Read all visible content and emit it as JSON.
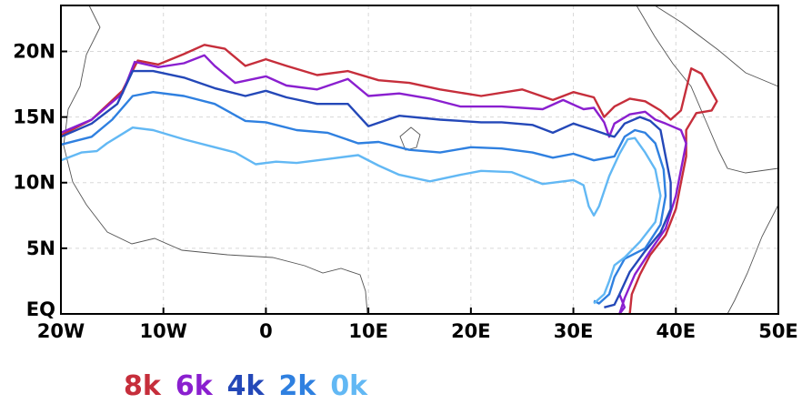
{
  "map": {
    "x_ticks": [
      "20W",
      "10W",
      "0",
      "10E",
      "20E",
      "30E",
      "40E",
      "50E"
    ],
    "y_ticks": [
      "EQ",
      "5N",
      "10N",
      "15N",
      "20N"
    ],
    "lon_range": [
      -20,
      50
    ],
    "lat_range": [
      0,
      23.5
    ],
    "gridlines": true,
    "coastline_color": "#555555"
  },
  "legend": [
    {
      "label": "8k",
      "color": "#c62e3b"
    },
    {
      "label": "6k",
      "color": "#8a1fcf"
    },
    {
      "label": "4k",
      "color": "#2448b8"
    },
    {
      "label": "2k",
      "color": "#2f80e0"
    },
    {
      "label": "0k",
      "color": "#62b8f4"
    }
  ],
  "chart_data": {
    "type": "line",
    "xlim": [
      -20,
      50
    ],
    "ylim": [
      0,
      23.5
    ],
    "series": [
      {
        "name": "8k",
        "color": "#c62e3b",
        "points": [
          [
            -20,
            13.6
          ],
          [
            -17,
            14.8
          ],
          [
            -14,
            17
          ],
          [
            -12.5,
            19.3
          ],
          [
            -10.5,
            19
          ],
          [
            -8,
            19.8
          ],
          [
            -6,
            20.5
          ],
          [
            -4,
            20.2
          ],
          [
            -2,
            18.9
          ],
          [
            0,
            19.4
          ],
          [
            2,
            18.9
          ],
          [
            5,
            18.2
          ],
          [
            8,
            18.5
          ],
          [
            11,
            17.8
          ],
          [
            14,
            17.6
          ],
          [
            17,
            17.1
          ],
          [
            21,
            16.6
          ],
          [
            25,
            17.1
          ],
          [
            28,
            16.3
          ],
          [
            30,
            16.9
          ],
          [
            32,
            16.5
          ],
          [
            33,
            15
          ],
          [
            34,
            15.8
          ],
          [
            35.5,
            16.4
          ],
          [
            37,
            16.2
          ],
          [
            38.5,
            15.5
          ],
          [
            39.5,
            14.8
          ],
          [
            40.5,
            15.5
          ],
          [
            41.5,
            18.7
          ],
          [
            42.5,
            18.3
          ],
          [
            44,
            16.2
          ],
          [
            43.5,
            15.5
          ],
          [
            42,
            15.3
          ],
          [
            41,
            14
          ],
          [
            41,
            12
          ],
          [
            40.5,
            10
          ],
          [
            40,
            8
          ],
          [
            39,
            6
          ],
          [
            37.5,
            4.5
          ],
          [
            36.5,
            3
          ],
          [
            35.7,
            1.5
          ],
          [
            35.5,
            0
          ]
        ]
      },
      {
        "name": "6k",
        "color": "#8a1fcf",
        "points": [
          [
            -20,
            13.8
          ],
          [
            -17,
            14.8
          ],
          [
            -14,
            16.8
          ],
          [
            -12.8,
            19.2
          ],
          [
            -10.5,
            18.8
          ],
          [
            -8,
            19.1
          ],
          [
            -6,
            19.7
          ],
          [
            -5,
            18.9
          ],
          [
            -3,
            17.6
          ],
          [
            0,
            18.1
          ],
          [
            2,
            17.4
          ],
          [
            5,
            17.1
          ],
          [
            8,
            17.9
          ],
          [
            10,
            16.6
          ],
          [
            13,
            16.8
          ],
          [
            16,
            16.4
          ],
          [
            19,
            15.8
          ],
          [
            23,
            15.8
          ],
          [
            27,
            15.6
          ],
          [
            29,
            16.3
          ],
          [
            31,
            15.6
          ],
          [
            32,
            15.7
          ],
          [
            33,
            14.6
          ],
          [
            33.5,
            13.5
          ],
          [
            34,
            14.5
          ],
          [
            35.5,
            15.2
          ],
          [
            37,
            15.4
          ],
          [
            38,
            14.8
          ],
          [
            39,
            14.5
          ],
          [
            40.5,
            14
          ],
          [
            41,
            13
          ],
          [
            40,
            9
          ],
          [
            39,
            6.5
          ],
          [
            37.5,
            4.8
          ],
          [
            36,
            3
          ],
          [
            35,
            1.2
          ],
          [
            34.5,
            0
          ],
          [
            35,
            0.5
          ],
          [
            34.5,
            1.5
          ]
        ]
      },
      {
        "name": "4k",
        "color": "#2448b8",
        "points": [
          [
            -20,
            13.5
          ],
          [
            -17,
            14.5
          ],
          [
            -14.5,
            16
          ],
          [
            -13,
            18.5
          ],
          [
            -11,
            18.5
          ],
          [
            -8,
            18
          ],
          [
            -5,
            17.2
          ],
          [
            -2,
            16.6
          ],
          [
            0,
            17
          ],
          [
            2,
            16.5
          ],
          [
            5,
            16
          ],
          [
            8,
            16
          ],
          [
            10,
            14.3
          ],
          [
            13,
            15.1
          ],
          [
            17,
            14.8
          ],
          [
            21,
            14.6
          ],
          [
            23,
            14.6
          ],
          [
            26,
            14.4
          ],
          [
            28,
            13.8
          ],
          [
            30,
            14.5
          ],
          [
            32,
            14
          ],
          [
            33.5,
            13.6
          ],
          [
            34,
            13.5
          ],
          [
            35,
            14.5
          ],
          [
            36.5,
            15
          ],
          [
            37.5,
            14.7
          ],
          [
            38.5,
            14
          ],
          [
            39,
            12
          ],
          [
            39.5,
            10
          ],
          [
            39.5,
            8
          ],
          [
            38.5,
            6.2
          ],
          [
            37,
            4.8
          ],
          [
            35.5,
            3.2
          ],
          [
            34.5,
            1.5
          ],
          [
            34,
            0.7
          ],
          [
            33,
            0.5
          ]
        ]
      },
      {
        "name": "2k",
        "color": "#2f80e0",
        "points": [
          [
            -20,
            12.9
          ],
          [
            -17,
            13.5
          ],
          [
            -15,
            14.8
          ],
          [
            -13,
            16.6
          ],
          [
            -11,
            16.9
          ],
          [
            -8,
            16.6
          ],
          [
            -5,
            16
          ],
          [
            -2,
            14.7
          ],
          [
            0,
            14.6
          ],
          [
            3,
            14
          ],
          [
            6,
            13.8
          ],
          [
            9,
            13
          ],
          [
            11,
            13.1
          ],
          [
            14,
            12.5
          ],
          [
            17,
            12.3
          ],
          [
            20,
            12.7
          ],
          [
            23,
            12.6
          ],
          [
            26,
            12.3
          ],
          [
            28,
            11.9
          ],
          [
            30,
            12.2
          ],
          [
            32,
            11.7
          ],
          [
            34,
            12
          ],
          [
            35,
            13.5
          ],
          [
            36,
            14
          ],
          [
            37,
            13.8
          ],
          [
            38,
            13
          ],
          [
            38.8,
            11
          ],
          [
            39,
            9
          ],
          [
            38.5,
            6.8
          ],
          [
            37,
            5
          ],
          [
            35,
            4.2
          ],
          [
            34,
            2.8
          ],
          [
            33.5,
            1.5
          ],
          [
            32.5,
            0.8
          ],
          [
            32,
            1
          ]
        ]
      },
      {
        "name": "0k",
        "color": "#62b8f4",
        "points": [
          [
            -20,
            11.7
          ],
          [
            -18,
            12.3
          ],
          [
            -16.5,
            12.4
          ],
          [
            -15.5,
            13
          ],
          [
            -13,
            14.2
          ],
          [
            -11,
            14
          ],
          [
            -8,
            13.3
          ],
          [
            -5,
            12.7
          ],
          [
            -3,
            12.3
          ],
          [
            -1,
            11.4
          ],
          [
            1,
            11.6
          ],
          [
            3,
            11.5
          ],
          [
            6,
            11.8
          ],
          [
            9,
            12.1
          ],
          [
            11,
            11.3
          ],
          [
            13,
            10.6
          ],
          [
            16,
            10.1
          ],
          [
            19,
            10.6
          ],
          [
            21,
            10.9
          ],
          [
            24,
            10.8
          ],
          [
            27,
            9.9
          ],
          [
            30,
            10.2
          ],
          [
            31,
            9.8
          ],
          [
            31.5,
            8.2
          ],
          [
            32,
            7.5
          ],
          [
            32.5,
            8.2
          ],
          [
            33.5,
            10.5
          ],
          [
            34.5,
            12.2
          ],
          [
            35.3,
            13.3
          ],
          [
            36,
            13.4
          ],
          [
            37,
            12.3
          ],
          [
            38,
            11
          ],
          [
            38.5,
            9
          ],
          [
            38,
            7
          ],
          [
            36.5,
            5.5
          ],
          [
            35,
            4.3
          ],
          [
            34,
            3.7
          ],
          [
            33.5,
            2.5
          ],
          [
            33,
            1.5
          ],
          [
            32,
            0.8
          ]
        ]
      }
    ]
  }
}
